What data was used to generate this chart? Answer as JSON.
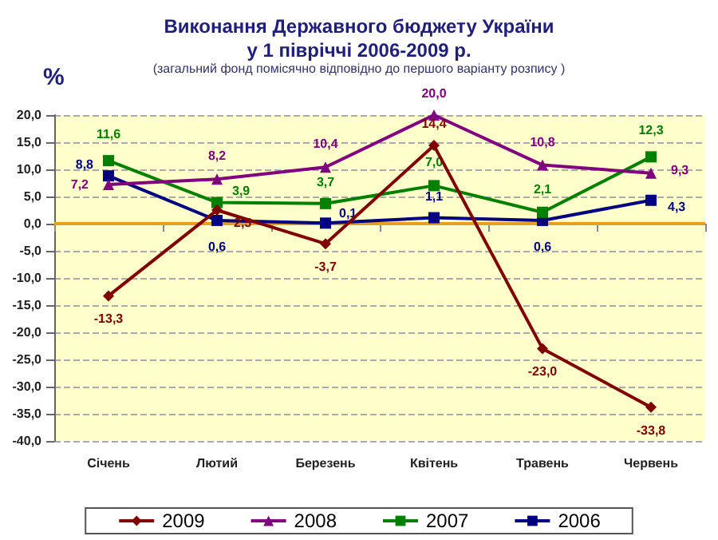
{
  "chart_data": {
    "type": "line",
    "title": "Виконання Державного бюджету України\nу 1 півріччі 2006-2009 р.",
    "subtitle": "(загальний фонд помісячно відповідно до першого варіанту розпису )",
    "ylabel": "%",
    "categories": [
      "Січень",
      "Лютий",
      "Березень",
      "Квітень",
      "Травень",
      "Червень"
    ],
    "series": [
      {
        "name": "2009",
        "color": "#800000",
        "marker": "diamond",
        "values": [
          -13.3,
          2.5,
          -3.7,
          14.4,
          -23.0,
          -33.8
        ],
        "value_labels": [
          "-13,3",
          "2,5",
          "-3,7",
          "14,4",
          "-23,0",
          "-33,8"
        ]
      },
      {
        "name": "2008",
        "color": "#800080",
        "marker": "triangle",
        "values": [
          7.2,
          8.2,
          10.4,
          20.0,
          10.8,
          9.3
        ],
        "value_labels": [
          "7,2",
          "8,2",
          "10,4",
          "20,0",
          "10,8",
          "9,3"
        ]
      },
      {
        "name": "2007",
        "color": "#008000",
        "marker": "square",
        "values": [
          11.6,
          3.9,
          3.7,
          7.0,
          2.1,
          12.3
        ],
        "value_labels": [
          "11,6",
          "3,9",
          "3,7",
          "7,0",
          "2,1",
          "12,3"
        ]
      },
      {
        "name": "2006",
        "color": "#000080",
        "marker": "square",
        "values": [
          8.8,
          0.6,
          0.1,
          1.1,
          0.6,
          4.3
        ],
        "value_labels": [
          "8,8",
          "0,6",
          "0,1",
          "1,1",
          "0,6",
          "4,3"
        ]
      }
    ],
    "ref_lines": [
      {
        "axis": "y",
        "value": 0,
        "color": "#e6a020"
      }
    ],
    "ylim": [
      -40,
      20
    ],
    "yticks": [
      {
        "value": -40,
        "label": "-40,0"
      },
      {
        "value": -35,
        "label": "-35,0"
      },
      {
        "value": -30,
        "label": "-30,0"
      },
      {
        "value": -25,
        "label": "-25,0"
      },
      {
        "value": -20,
        "label": "-20,0"
      },
      {
        "value": -15,
        "label": "-15,0"
      },
      {
        "value": -10,
        "label": "-10,0"
      },
      {
        "value": -5,
        "label": "-5,0"
      },
      {
        "value": 0,
        "label": "0,0"
      },
      {
        "value": 5,
        "label": "5,0"
      },
      {
        "value": 10,
        "label": "10,0"
      },
      {
        "value": 15,
        "label": "15,0"
      },
      {
        "value": 20,
        "label": "20,0"
      }
    ],
    "grid": "y",
    "legend": "bottom",
    "line_style": "solid"
  }
}
